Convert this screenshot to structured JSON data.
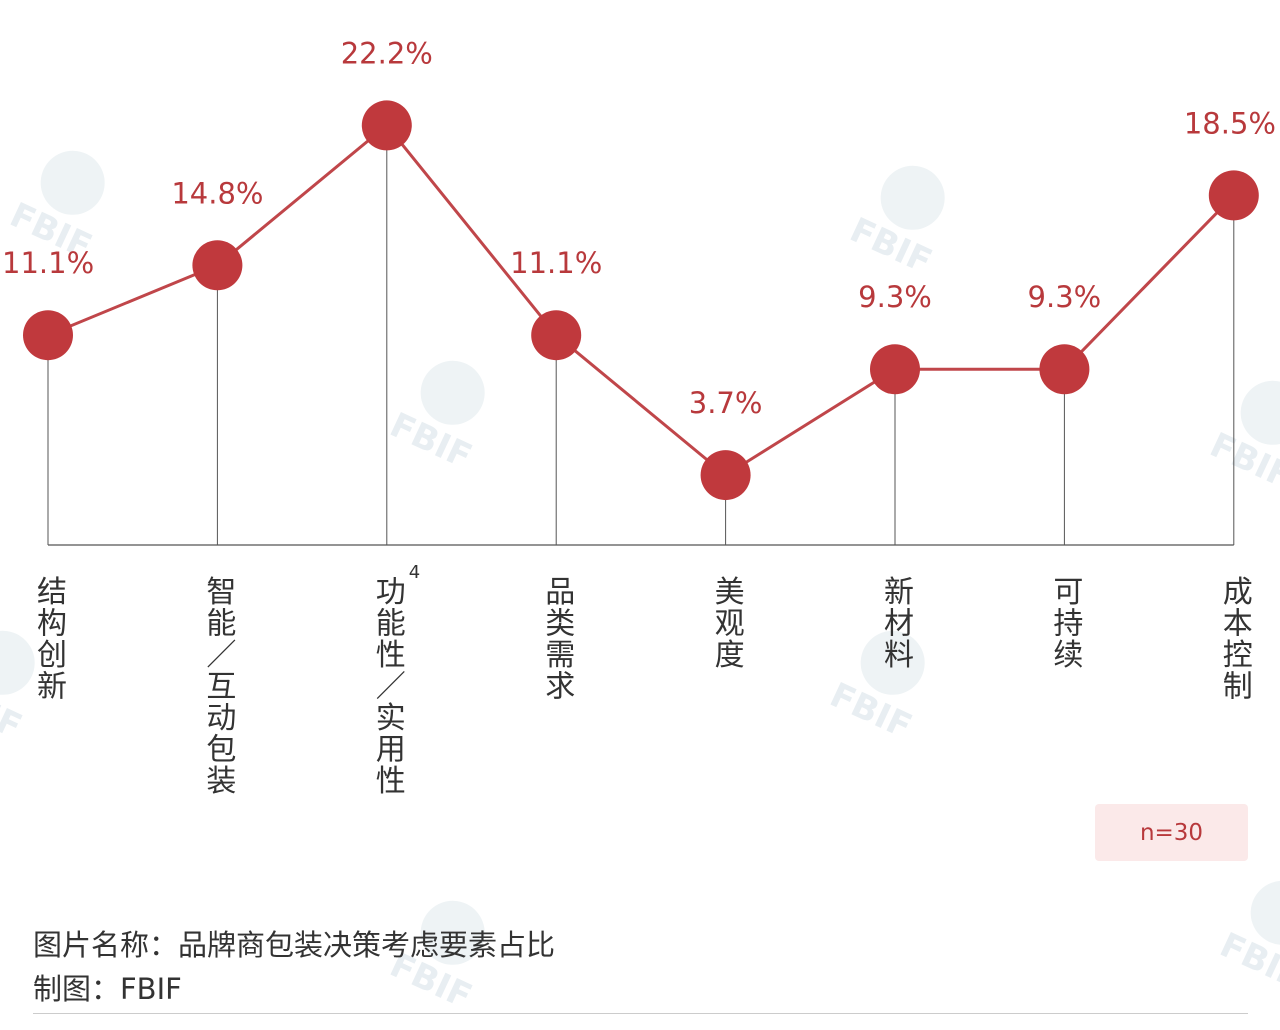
{
  "chart_data": {
    "type": "line",
    "title": "",
    "xlabel": "",
    "ylabel": "",
    "ylim": [
      0,
      26
    ],
    "grid": false,
    "legend": "none",
    "categories": [
      "结构创新",
      "智能／互动包装",
      "功能性／实用性",
      "品类需求",
      "美观度",
      "新材料",
      "可持续",
      "成本控制"
    ],
    "category_footnotes": [
      "",
      "",
      "4",
      "",
      "",
      "",
      "",
      ""
    ],
    "values": [
      11.1,
      14.8,
      22.2,
      11.1,
      3.7,
      9.3,
      9.3,
      18.5
    ],
    "value_labels": [
      "11.1%",
      "14.8%",
      "22.2%",
      "11.1%",
      "3.7%",
      "9.3%",
      "9.3%",
      "18.5%"
    ],
    "colors": {
      "line": "#c0464a",
      "marker": "#c0393d",
      "label": "#b8393c",
      "axis": "#555555"
    }
  },
  "sample_badge": "n=30",
  "caption": {
    "title": "图片名称：品牌商包装决策考虑要素占比",
    "source": "制图：FBIF"
  },
  "watermark": {
    "text": "FBIF",
    "icon": "fbif-logo-icon"
  }
}
